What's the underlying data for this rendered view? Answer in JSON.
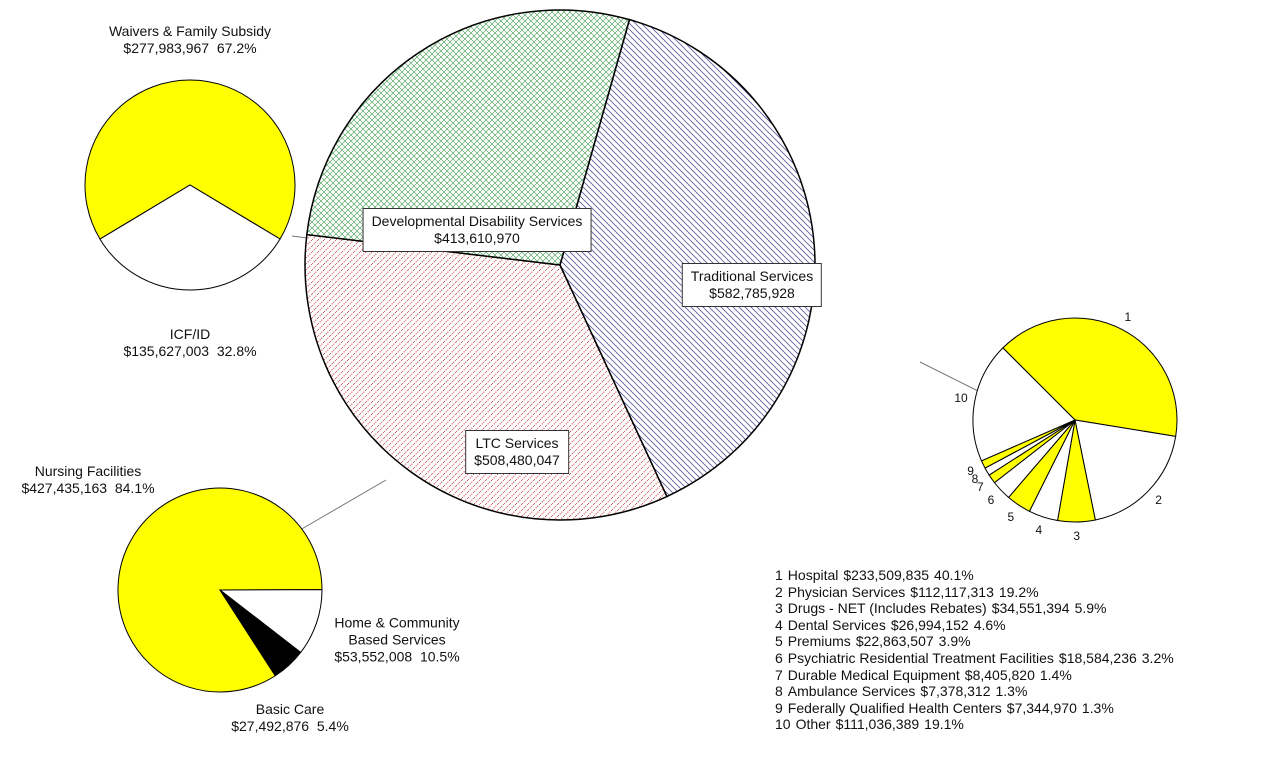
{
  "chart_data": [
    {
      "type": "pie",
      "categories": [
        "Traditional Services",
        "LTC Services",
        "Developmental Disability Services"
      ],
      "values": [
        582785928,
        508480047,
        413610970
      ],
      "value_labels": [
        "$582,785,928",
        "$508,480,047",
        "$413,610,970"
      ],
      "colors": [
        "#5a5aa0",
        "#cc2a2a",
        "#3a9a4a"
      ]
    },
    {
      "type": "pie",
      "categories": [
        "Waivers & Family Subsidy",
        "ICF/ID"
      ],
      "values": [
        277983967,
        135627003
      ],
      "value_labels": [
        "$277,983,967",
        "$135,627,003"
      ],
      "percents": [
        67.2,
        32.8
      ],
      "percent_labels": [
        "67.2%",
        "32.8%"
      ],
      "colors": [
        "#ffff00",
        "#ffffff"
      ]
    },
    {
      "type": "pie",
      "categories": [
        "Nursing Facilities",
        "Home & Community Based Services",
        "Basic Care"
      ],
      "values": [
        427435163,
        53552008,
        27492876
      ],
      "value_labels": [
        "$427,435,163",
        "$53,552,008",
        "$27,492,876"
      ],
      "percents": [
        84.1,
        10.5,
        5.4
      ],
      "percent_labels": [
        "84.1%",
        "10.5%",
        "5.4%"
      ],
      "colors": [
        "#ffff00",
        "#ffffff",
        "#000000"
      ]
    },
    {
      "type": "pie",
      "numbers": [
        1,
        2,
        3,
        4,
        5,
        6,
        7,
        8,
        9,
        10
      ],
      "categories": [
        "Hospital",
        "Physician Services",
        "Drugs - NET (Includes Rebates)",
        "Dental Services",
        "Premiums",
        "Psychiatric Residential Treatment Facilities",
        "Durable Medical Equipment",
        "Ambulance Services",
        "Federally Qualified Health Centers",
        "Other"
      ],
      "values": [
        233509835,
        112117313,
        34551394,
        26994152,
        22863507,
        18584236,
        8405820,
        7378312,
        7344970,
        111036389
      ],
      "value_labels": [
        "$233,509,835",
        "$112,117,313",
        "$34,551,394",
        "$26,994,152",
        "$22,863,507",
        "$18,584,236",
        "$8,405,820",
        "$7,378,312",
        "$7,344,970",
        "$111,036,389"
      ],
      "percents": [
        40.1,
        19.2,
        5.9,
        4.6,
        3.9,
        3.2,
        1.4,
        1.3,
        1.3,
        19.1
      ],
      "percent_labels": [
        "40.1%",
        "19.2%",
        "5.9%",
        "4.6%",
        "3.9%",
        "3.2%",
        "1.4%",
        "1.3%",
        "1.3%",
        "19.1%"
      ],
      "colors": [
        "#ffff00",
        "#ffffff",
        "#ffff00",
        "#ffffff",
        "#ffff00",
        "#ffffff",
        "#ffff00",
        "#ffffff",
        "#ffff00",
        "#ffffff"
      ]
    }
  ]
}
